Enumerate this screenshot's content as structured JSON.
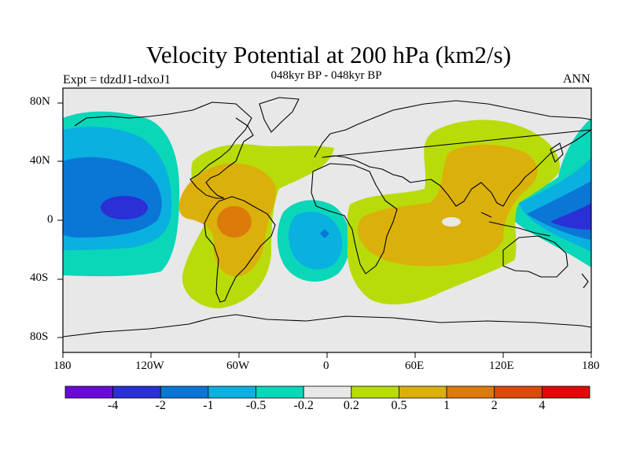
{
  "title": "Velocity Potential at 200 hPa (km2/s)",
  "subtitle": "048kyr BP - 048kyr BP",
  "left_label": "Expt = tdzdJ1-tdxoJ1",
  "right_label": "ANN",
  "lat_labels": [
    "80N",
    "40N",
    "0",
    "40S",
    "80S"
  ],
  "lon_labels": [
    "180",
    "120W",
    "60W",
    "0",
    "60E",
    "120E",
    "180"
  ],
  "colorbar": {
    "colors": [
      "#6a0ad8",
      "#2a2fd6",
      "#0a76d6",
      "#0ab0e0",
      "#0ad6b8",
      "#e8e8e8",
      "#b8dc0a",
      "#dcb00a",
      "#dc7a0a",
      "#dc4a0a",
      "#e00a0a"
    ],
    "labels": [
      "-4",
      "-2",
      "-1",
      "-0.5",
      "-0.2",
      "0.2",
      "0.5",
      "1",
      "2",
      "4"
    ]
  },
  "chart_data": {
    "type": "heatmap",
    "title": "Velocity Potential at 200 hPa (km2/s)",
    "subtitle": "048kyr BP - 048kyr BP",
    "projection": "cylindrical equidistant",
    "xlim": [
      -180,
      180
    ],
    "ylim": [
      -90,
      90
    ],
    "x_ticks": [
      "180",
      "120W",
      "60W",
      "0",
      "60E",
      "120E",
      "180"
    ],
    "y_ticks": [
      "80N",
      "40N",
      "0",
      "40S",
      "80S"
    ],
    "contour_levels": [
      -4,
      -2,
      -1,
      -0.5,
      -0.2,
      0.2,
      0.5,
      1,
      2,
      4
    ],
    "features": [
      {
        "region": "Central North Pacific",
        "center": [
          -135,
          10
        ],
        "min_value_class": "-4 to -2"
      },
      {
        "region": "Northeast Pacific",
        "center": [
          -150,
          30
        ],
        "value_class": "-1 to -0.5"
      },
      {
        "region": "Western Pacific / Maritime Continent",
        "center": [
          165,
          5
        ],
        "value_class": "-2 to -1"
      },
      {
        "region": "Tropical South Atlantic",
        "center": [
          -5,
          -10
        ],
        "value_class": "-0.5 to -0.2"
      },
      {
        "region": "Amazon / South America",
        "center": [
          -65,
          -5
        ],
        "max_value_class": "1 to 2"
      },
      {
        "region": "Africa - Indian Ocean - Asia",
        "center": [
          55,
          0
        ],
        "value_class": "0.5 to 1"
      }
    ]
  }
}
